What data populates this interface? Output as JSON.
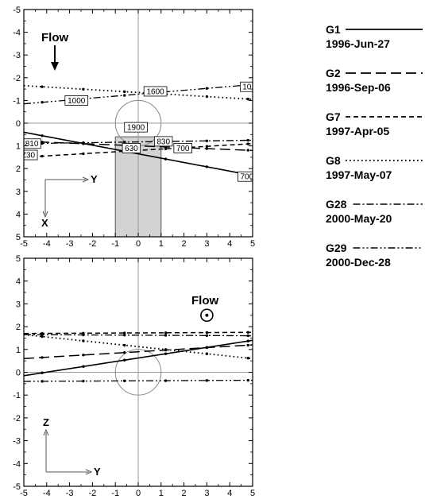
{
  "chart_data": [
    {
      "type": "line",
      "panel": "top",
      "xlim": [
        -5,
        5
      ],
      "ylim": [
        -5,
        5
      ],
      "y_inverted": true,
      "x_ticks": [
        "-5",
        "-4",
        "-3",
        "-2",
        "-1",
        "0",
        "1",
        "2",
        "3",
        "4",
        "5"
      ],
      "y_ticks": [
        "-5",
        "-4",
        "-3",
        "-2",
        "-1",
        "0",
        "1",
        "2",
        "3",
        "4",
        "5"
      ],
      "annotation_flow": "Flow",
      "axis_label_horizontal": "Y",
      "axis_label_vertical": "X",
      "shaded_region": {
        "x": [
          -1,
          1
        ],
        "y": [
          0.6,
          5
        ]
      },
      "circle": {
        "cx": 0,
        "cy": 0,
        "r": 1
      },
      "series": [
        {
          "name": "G1",
          "x": [
            -5,
            5
          ],
          "y": [
            0.4,
            2.3
          ]
        },
        {
          "name": "G2",
          "x": [
            -5,
            5
          ],
          "y": [
            0.8,
            1.2
          ]
        },
        {
          "name": "G7",
          "x": [
            -5,
            5
          ],
          "y": [
            1.5,
            0.9
          ]
        },
        {
          "name": "G8",
          "x": [
            -5,
            5
          ],
          "y": [
            -1.65,
            -1.05
          ]
        },
        {
          "name": "G28",
          "x": [
            -5,
            5
          ],
          "y": [
            0.9,
            0.75
          ]
        },
        {
          "name": "G29",
          "x": [
            -5,
            5
          ],
          "y": [
            -0.85,
            -1.7
          ]
        }
      ],
      "labels": [
        {
          "text": "1000",
          "x": -2.7,
          "y": -1.0
        },
        {
          "text": "1600",
          "x": 0.75,
          "y": -1.4
        },
        {
          "text": "10",
          "x": 4.75,
          "y": -1.6
        },
        {
          "text": "1900",
          "x": -0.1,
          "y": 0.18
        },
        {
          "text": "810",
          "x": -4.65,
          "y": 0.9
        },
        {
          "text": "830",
          "x": 1.1,
          "y": 0.8
        },
        {
          "text": "700",
          "x": 1.95,
          "y": 1.1
        },
        {
          "text": "630",
          "x": -0.3,
          "y": 1.1
        },
        {
          "text": "730",
          "x": -4.8,
          "y": 1.4
        },
        {
          "text": "700",
          "x": 4.75,
          "y": 2.35
        }
      ]
    },
    {
      "type": "line",
      "panel": "bottom",
      "xlim": [
        -5,
        5
      ],
      "ylim": [
        -5,
        5
      ],
      "x_ticks": [
        "-5",
        "-4",
        "-3",
        "-2",
        "-1",
        "0",
        "1",
        "2",
        "3",
        "4",
        "5"
      ],
      "y_ticks": [
        "-5",
        "-4",
        "-3",
        "-2",
        "-1",
        "0",
        "1",
        "2",
        "3",
        "4",
        "5"
      ],
      "annotation_flow": "Flow",
      "flow_symbol_position": {
        "x": 3.0,
        "y": 2.5
      },
      "axis_label_horizontal": "Y",
      "axis_label_vertical": "Z",
      "circle": {
        "cx": 0,
        "cy": 0,
        "r": 1
      },
      "series": [
        {
          "name": "G1",
          "x": [
            -5,
            5
          ],
          "y": [
            -0.15,
            1.4
          ]
        },
        {
          "name": "G2",
          "x": [
            -5,
            5
          ],
          "y": [
            0.6,
            1.2
          ]
        },
        {
          "name": "G7",
          "x": [
            -5,
            5
          ],
          "y": [
            1.7,
            1.75
          ]
        },
        {
          "name": "G8",
          "x": [
            -5,
            5
          ],
          "y": [
            1.65,
            0.6
          ]
        },
        {
          "name": "G28",
          "x": [
            -5,
            5
          ],
          "y": [
            1.65,
            1.6
          ]
        },
        {
          "name": "G29",
          "x": [
            -5,
            5
          ],
          "y": [
            -0.4,
            -0.35
          ]
        }
      ]
    }
  ],
  "legend": [
    {
      "name": "G1",
      "date": "1996-Jun-27",
      "dash": "solid"
    },
    {
      "name": "G2",
      "date": "1996-Sep-06",
      "dash": "longdash"
    },
    {
      "name": "G7",
      "date": "1997-Apr-05",
      "dash": "dash"
    },
    {
      "name": "G8",
      "date": "1997-May-07",
      "dash": "dot"
    },
    {
      "name": "G28",
      "date": "2000-May-20",
      "dash": "dashdot"
    },
    {
      "name": "G29",
      "date": "2000-Dec-28",
      "dash": "dashdotdot"
    }
  ]
}
